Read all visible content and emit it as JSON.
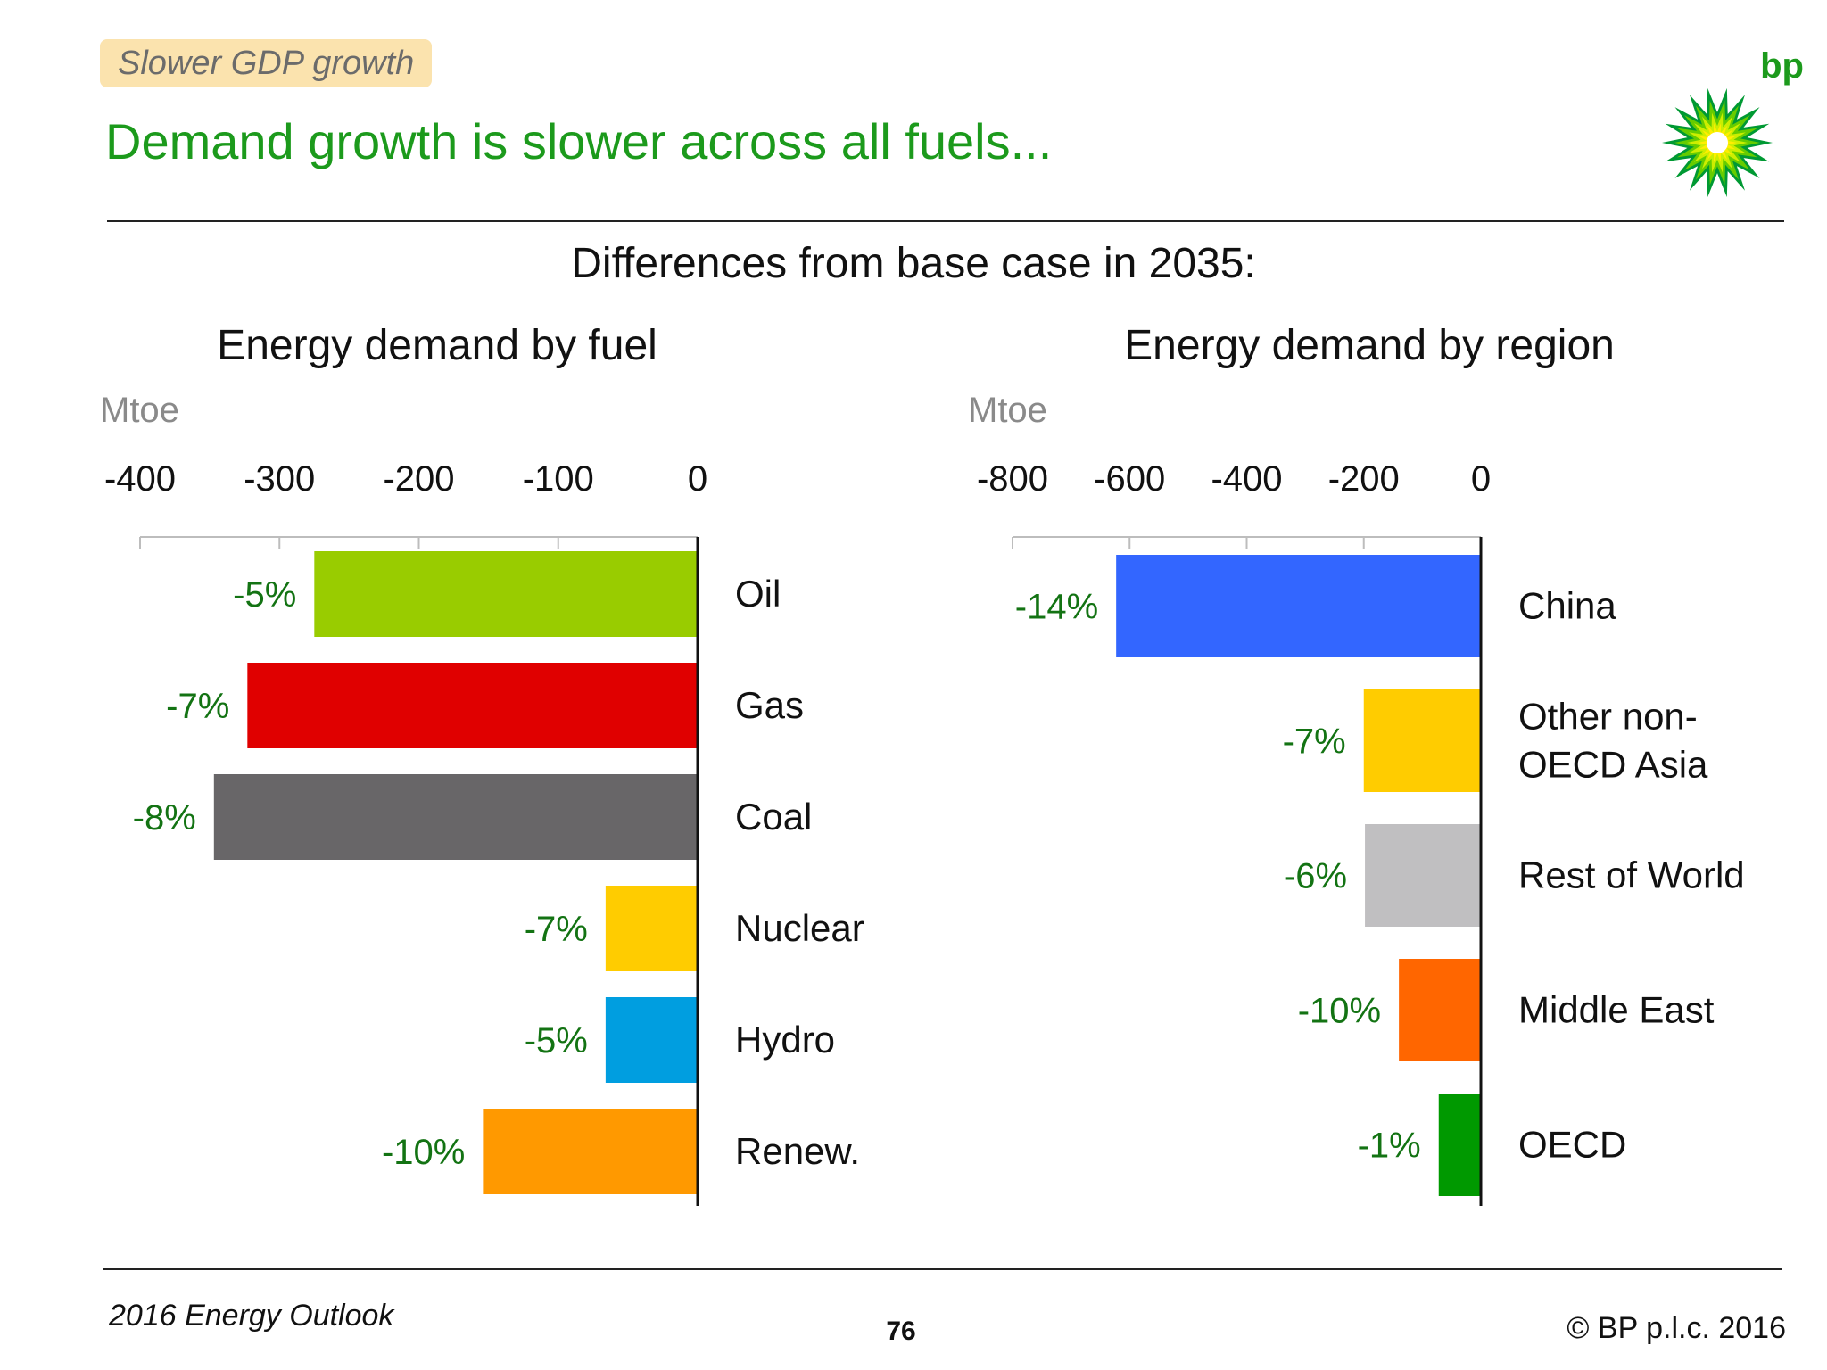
{
  "header": {
    "tag": "Slower GDP growth",
    "headline": "Demand growth is slower across all fuels...",
    "logo_text": "bp"
  },
  "subtitle": "Differences from base case in 2035:",
  "chart_data": [
    {
      "type": "bar",
      "orientation": "horizontal",
      "title": "Energy demand by fuel",
      "unit_label": "Mtoe",
      "xlim": [
        -400,
        0
      ],
      "ticks": [
        -400,
        -300,
        -200,
        -100,
        0
      ],
      "tick_labels": [
        "-400",
        "-300",
        "-200",
        "-100",
        "0"
      ],
      "categories": [
        "Oil",
        "Gas",
        "Coal",
        "Nuclear",
        "Hydro",
        "Renew."
      ],
      "values": [
        -275,
        -323,
        -347,
        -66,
        -66,
        -154
      ],
      "data_labels": [
        "-5%",
        "-7%",
        "-8%",
        "-7%",
        "-5%",
        "-10%"
      ],
      "colors": [
        "#99cc00",
        "#e00000",
        "#686668",
        "#ffcc00",
        "#009ee0",
        "#ff9900"
      ]
    },
    {
      "type": "bar",
      "orientation": "horizontal",
      "title": "Energy demand by region",
      "unit_label": "Mtoe",
      "xlim": [
        -800,
        0
      ],
      "ticks": [
        -800,
        -600,
        -400,
        -200,
        0
      ],
      "tick_labels": [
        "-800",
        "-600",
        "-400",
        "-200",
        "0"
      ],
      "categories": [
        "China",
        "Other non-\nOECD Asia",
        "Rest of World",
        "Middle East",
        "OECD"
      ],
      "values": [
        -623,
        -200,
        -198,
        -140,
        -72
      ],
      "data_labels": [
        "-14%",
        "-7%",
        "-6%",
        "-10%",
        "-1%"
      ],
      "colors": [
        "#3366ff",
        "#ffcc00",
        "#c0bfc1",
        "#ff6600",
        "#009900"
      ]
    }
  ],
  "footer": {
    "left": "2016 Energy Outlook",
    "page": "76",
    "right": "© BP p.l.c. 2016"
  }
}
